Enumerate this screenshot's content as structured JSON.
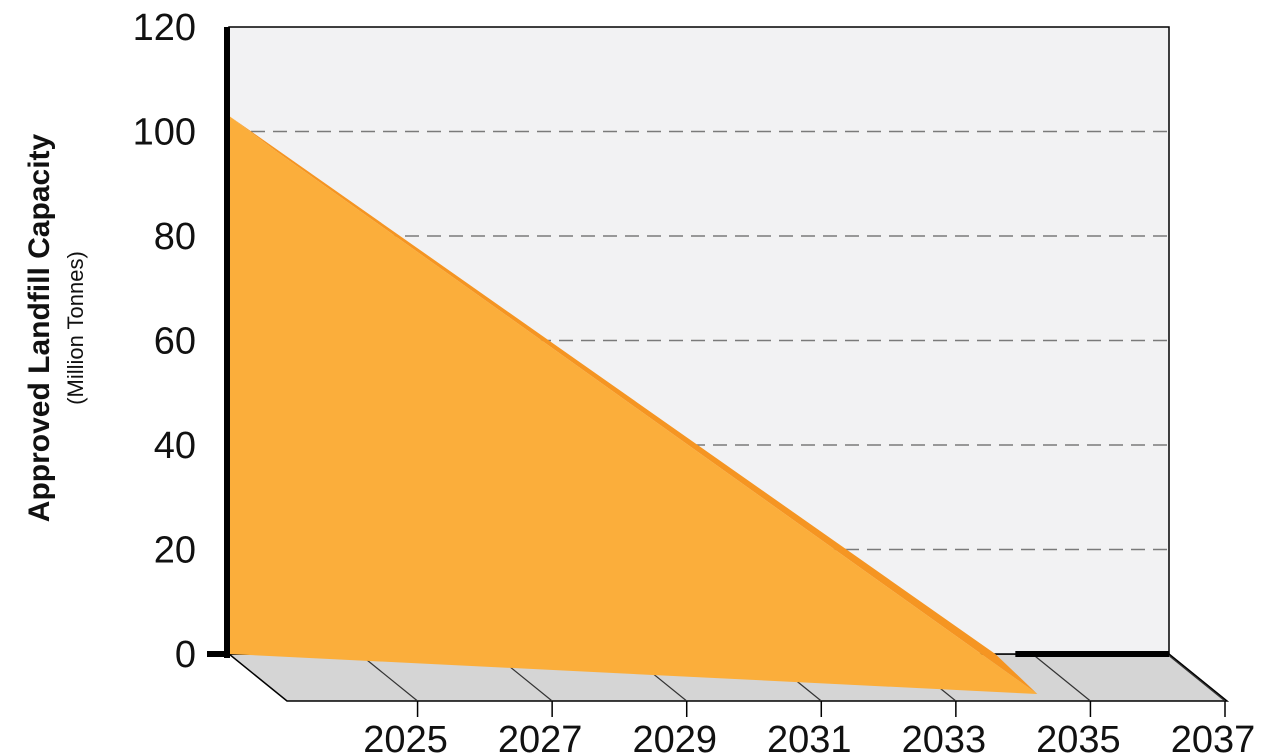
{
  "chart_data": {
    "type": "area",
    "title": "",
    "ylabel": "Approved Landfill Capacity",
    "ylabel_unit": "(Million Tonnes)",
    "xlabel": "",
    "ylim": [
      0,
      120
    ],
    "yticks": [
      0,
      20,
      40,
      60,
      80,
      100,
      120
    ],
    "xlim": [
      2023,
      2037
    ],
    "xticks": [
      2025,
      2027,
      2029,
      2031,
      2033,
      2035,
      2037
    ],
    "grid": "dashed horizontal",
    "series": [
      {
        "x": [
          2023,
          2034.3
        ],
        "y": [
          103,
          0
        ]
      }
    ],
    "colors": {
      "area_front": "#FBAE3B",
      "area_top": "#F59522",
      "backwall": "#F2F2F3",
      "floor": "#D5D5D5",
      "axis": "#000000",
      "grid": "#7a7a7a"
    }
  }
}
